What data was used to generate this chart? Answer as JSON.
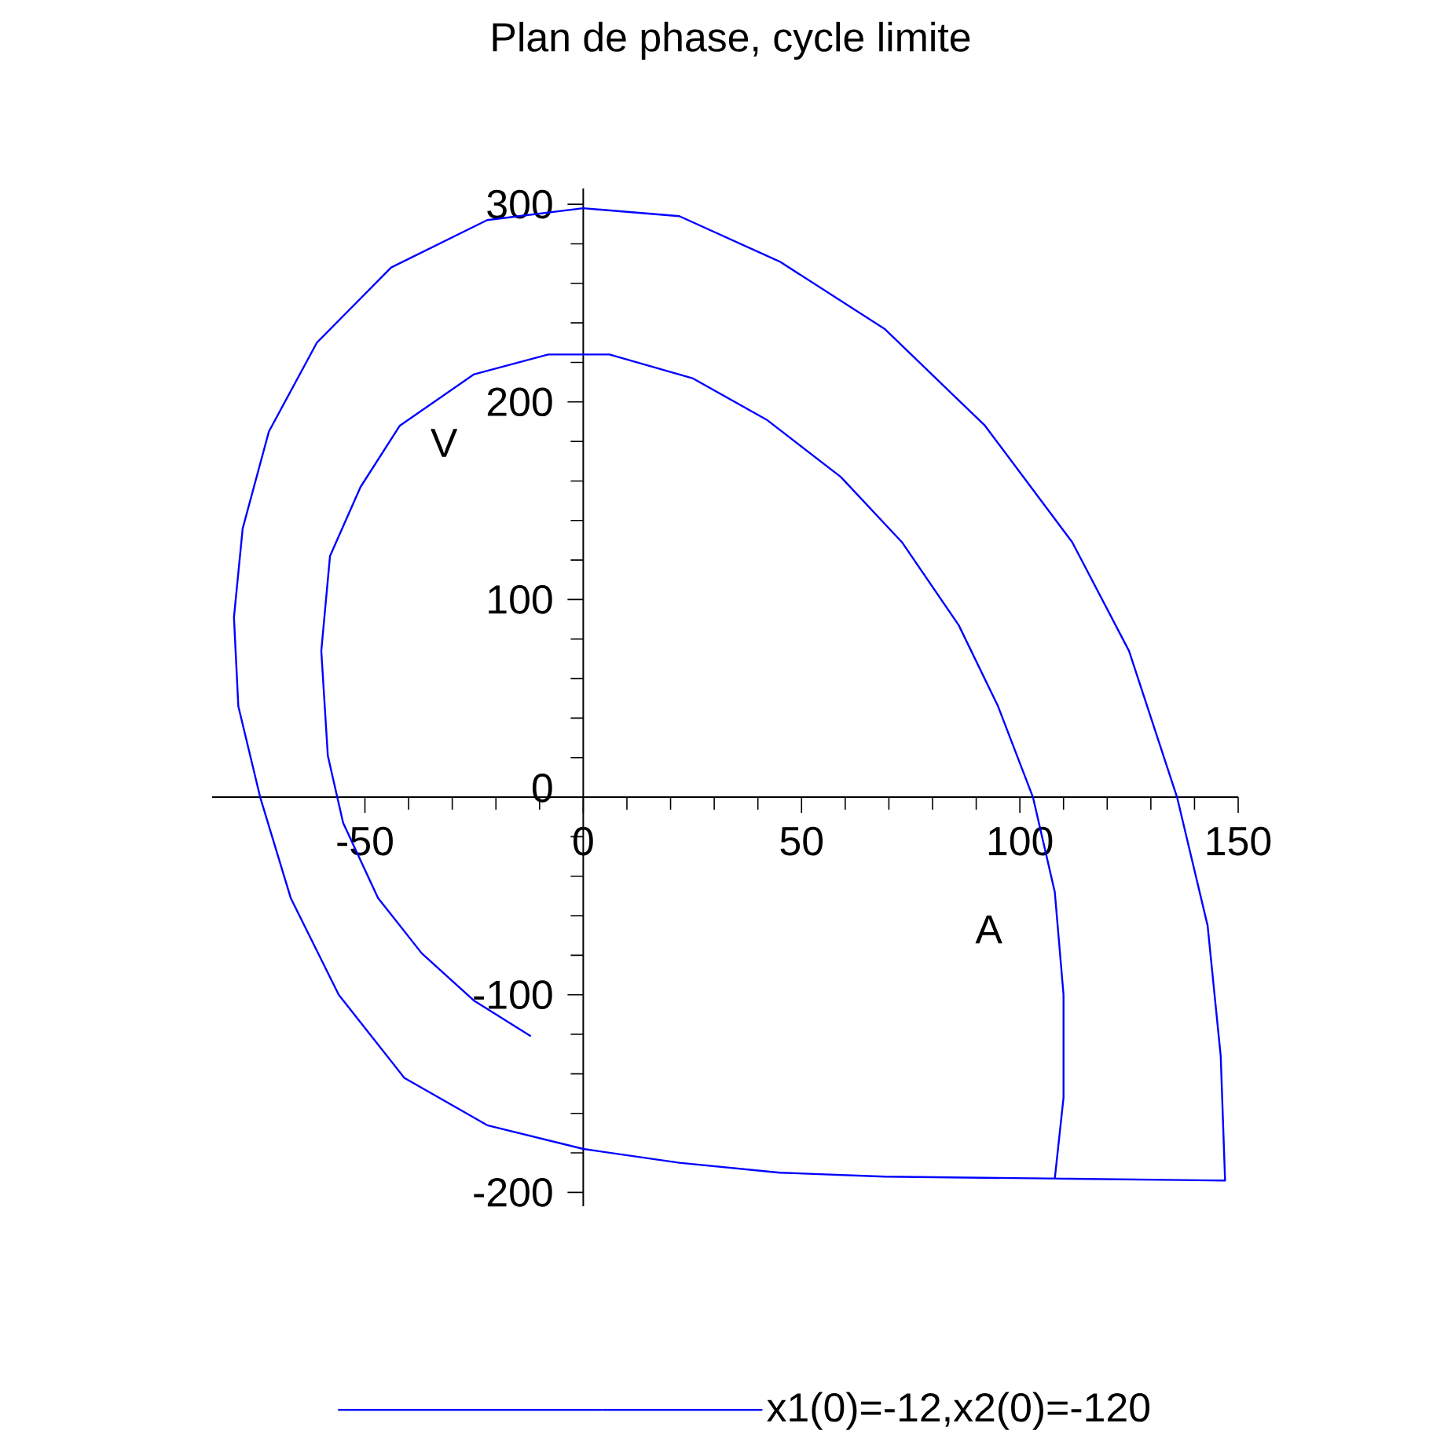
{
  "chart_data": {
    "type": "line",
    "title": "Plan de phase, cycle limite",
    "xlabel": "A",
    "ylabel": "V",
    "x": [
      -12,
      -25,
      -37,
      -47,
      -55,
      -58.5,
      -60,
      -58,
      -51,
      -42,
      -25,
      -8,
      6,
      25,
      42,
      59,
      73,
      86,
      95,
      103,
      108,
      110,
      110,
      108,
      147,
      146,
      143,
      136,
      125,
      112,
      92,
      69,
      45,
      22,
      0,
      -22,
      -44,
      -61,
      -72,
      -78,
      -80,
      -79,
      -74,
      -67,
      -56,
      -41,
      -22,
      0,
      22,
      45,
      69,
      108,
      147
    ],
    "series": [
      {
        "name": "x1(0)=-12,x2(0)=-120",
        "color": "#0000ff",
        "values": [
          -121,
          -103,
          -79,
          -51,
          -13,
          21,
          74,
          122,
          157,
          188,
          214,
          224,
          224,
          212,
          191,
          162,
          129,
          87,
          46,
          0,
          -48,
          -100,
          -152,
          -193,
          -194,
          -131,
          -65,
          0,
          74,
          129,
          188,
          237,
          271,
          294,
          298,
          292,
          268,
          230,
          185,
          136,
          91,
          46,
          0,
          -51,
          -100,
          -142,
          -166,
          -178,
          -185,
          -190,
          -192,
          -193,
          -194
        ]
      }
    ],
    "xlim": [
      -85,
      150
    ],
    "ylim": [
      -207,
      308
    ],
    "xticks": [
      -50,
      0,
      50,
      100,
      150
    ],
    "yticks": [
      -200,
      -100,
      0,
      100,
      200,
      300
    ],
    "legend": "bottom"
  }
}
